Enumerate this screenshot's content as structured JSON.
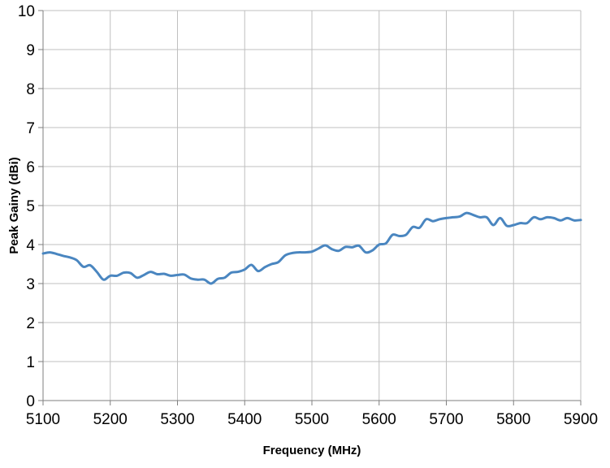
{
  "chart_data": {
    "type": "line",
    "title": "",
    "xlabel": "Frequency (MHz)",
    "ylabel": "Peak Gainy (dBi)",
    "xlim": [
      5100,
      5900
    ],
    "ylim": [
      0,
      10
    ],
    "x_ticks": [
      5100,
      5200,
      5300,
      5400,
      5500,
      5600,
      5700,
      5800,
      5900
    ],
    "y_ticks": [
      0,
      1,
      2,
      3,
      4,
      5,
      6,
      7,
      8,
      9,
      10
    ],
    "grid": true,
    "legend": "none",
    "colors": {
      "line": "#4a86c0",
      "grid": "#bfbfbf",
      "axis": "#7f7f7f"
    },
    "series": [
      {
        "x": [
          5100,
          5110,
          5120,
          5130,
          5140,
          5150,
          5160,
          5170,
          5180,
          5190,
          5200,
          5210,
          5220,
          5230,
          5240,
          5250,
          5260,
          5270,
          5280,
          5290,
          5300,
          5310,
          5320,
          5330,
          5340,
          5350,
          5360,
          5370,
          5380,
          5390,
          5400,
          5410,
          5420,
          5430,
          5440,
          5450,
          5460,
          5470,
          5480,
          5490,
          5500,
          5510,
          5520,
          5530,
          5540,
          5550,
          5560,
          5570,
          5580,
          5590,
          5600,
          5610,
          5620,
          5630,
          5640,
          5650,
          5660,
          5670,
          5680,
          5690,
          5700,
          5710,
          5720,
          5730,
          5740,
          5750,
          5760,
          5770,
          5780,
          5790,
          5800,
          5810,
          5820,
          5830,
          5840,
          5850,
          5860,
          5870,
          5880,
          5890,
          5900
        ],
        "y": [
          3.77,
          3.8,
          3.76,
          3.71,
          3.67,
          3.6,
          3.43,
          3.47,
          3.3,
          3.1,
          3.2,
          3.2,
          3.28,
          3.27,
          3.15,
          3.22,
          3.3,
          3.24,
          3.25,
          3.2,
          3.22,
          3.23,
          3.13,
          3.1,
          3.1,
          3.0,
          3.12,
          3.15,
          3.28,
          3.3,
          3.36,
          3.48,
          3.32,
          3.42,
          3.5,
          3.55,
          3.72,
          3.78,
          3.8,
          3.8,
          3.82,
          3.9,
          3.98,
          3.88,
          3.84,
          3.94,
          3.93,
          3.97,
          3.8,
          3.85,
          4.0,
          4.03,
          4.25,
          4.22,
          4.25,
          4.45,
          4.43,
          4.65,
          4.6,
          4.65,
          4.68,
          4.7,
          4.72,
          4.81,
          4.76,
          4.7,
          4.7,
          4.5,
          4.68,
          4.48,
          4.5,
          4.55,
          4.55,
          4.7,
          4.65,
          4.7,
          4.68,
          4.62,
          4.68,
          4.62,
          4.63
        ]
      }
    ]
  }
}
